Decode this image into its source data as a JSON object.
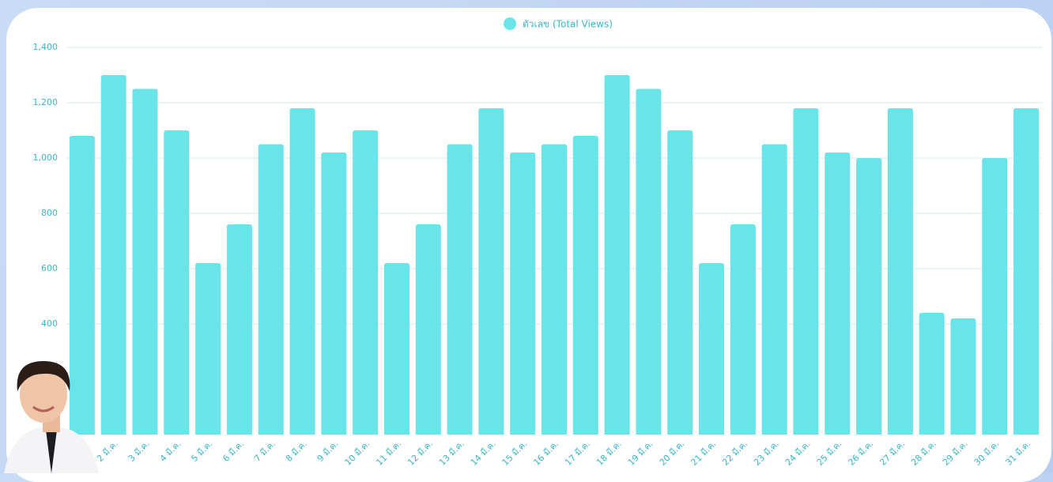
{
  "chart_data": {
    "type": "bar",
    "legend": "ตัวเลข (Total Views)",
    "color": "#69e4e9",
    "categories": [
      null,
      "2 มี.ค.",
      "3 มี.ค.",
      "4 มี.ค.",
      "5 มี.ค.",
      "6 มี.ค.",
      "7 มี.ค.",
      "8 มี.ค.",
      "9 มี.ค.",
      "10 มี.ค.",
      "11 มี.ค.",
      "12 มี.ค.",
      "13 มี.ค.",
      "14 มี.ค.",
      "15 มี.ค.",
      "16 มี.ค.",
      "17 มี.ค.",
      "18 มี.ค.",
      "19 มี.ค.",
      "20 มี.ค.",
      "21 มี.ค.",
      "22 มี.ค.",
      "23 มี.ค.",
      "24 มี.ค.",
      "25 มี.ค.",
      "26 มี.ค.",
      "27 มี.ค.",
      "28 มี.ค.",
      "29 มี.ค.",
      "30 มี.ค.",
      "31 มี.ค."
    ],
    "values": [
      1080,
      1300,
      1250,
      1100,
      620,
      760,
      1050,
      1180,
      1020,
      1100,
      620,
      760,
      1050,
      1180,
      1020,
      1050,
      1080,
      1300,
      1250,
      1100,
      620,
      760,
      1050,
      1180,
      1020,
      1000,
      1180,
      440,
      420,
      1000,
      1180
    ],
    "ylim": [
      0,
      1400
    ],
    "yticks": [
      {
        "value": 400,
        "label": "400"
      },
      {
        "value": 600,
        "label": "600"
      },
      {
        "value": 800,
        "label": "800"
      },
      {
        "value": 1000,
        "label": "1,000"
      },
      {
        "value": 1200,
        "label": "1,200"
      },
      {
        "value": 1400,
        "label": "1,400"
      }
    ],
    "grid": true
  }
}
